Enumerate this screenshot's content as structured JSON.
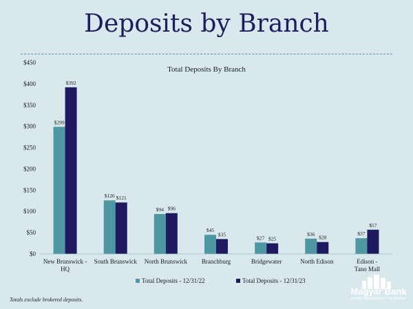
{
  "slide": {
    "title": "Deposits by Branch",
    "footnote": "Totals exclude brokered deposits.",
    "logo_text": "Magyar Bank",
    "logo_tagline": "proudly Magyarized by Joe Schinas"
  },
  "colors": {
    "background": "#d8e8ec",
    "title": "#1f1d5e",
    "series_2022": "#4e98a4",
    "series_2023": "#1f1a60"
  },
  "chart_data": {
    "type": "bar",
    "title": "Total Deposits By Branch",
    "xlabel": "",
    "ylabel": "",
    "ylim": [
      0,
      450
    ],
    "yticks": [
      "$0",
      "$50",
      "$100",
      "$150",
      "$200",
      "$250",
      "$300",
      "$350",
      "$400",
      "$450"
    ],
    "ytick_values": [
      0,
      50,
      100,
      150,
      200,
      250,
      300,
      350,
      400,
      450
    ],
    "categories": [
      "New Brunswick - HQ",
      "South Brunswick",
      "North Brunswick",
      "Branchburg",
      "Bridgewater",
      "North Edison",
      "Edison - Tano Mall"
    ],
    "series": [
      {
        "name": "Total Deposits - 12/31/22",
        "values": [
          299,
          126,
          94,
          45,
          27,
          36,
          37
        ],
        "labels": [
          "$299",
          "$126",
          "$94",
          "$45",
          "$27",
          "$36",
          "$37"
        ]
      },
      {
        "name": "Total Deposits - 12/31/23",
        "values": [
          392,
          121,
          96,
          35,
          25,
          28,
          57
        ],
        "labels": [
          "$392",
          "$121",
          "$96",
          "$35",
          "$25",
          "$28",
          "$57"
        ]
      }
    ],
    "legend_position": "bottom",
    "grid": false
  }
}
